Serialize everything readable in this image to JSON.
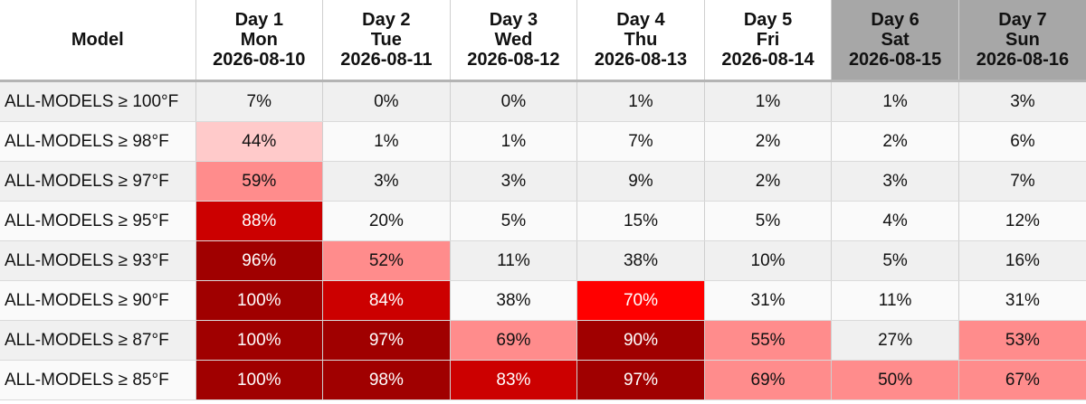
{
  "table": {
    "model_header": "Model",
    "days": [
      {
        "label": "Day 1",
        "weekday": "Mon",
        "date": "2026-08-10",
        "weekend": false
      },
      {
        "label": "Day 2",
        "weekday": "Tue",
        "date": "2026-08-11",
        "weekend": false
      },
      {
        "label": "Day 3",
        "weekday": "Wed",
        "date": "2026-08-12",
        "weekend": false
      },
      {
        "label": "Day 4",
        "weekday": "Thu",
        "date": "2026-08-13",
        "weekend": false
      },
      {
        "label": "Day 5",
        "weekday": "Fri",
        "date": "2026-08-14",
        "weekend": false
      },
      {
        "label": "Day 6",
        "weekday": "Sat",
        "date": "2026-08-15",
        "weekend": true
      },
      {
        "label": "Day 7",
        "weekday": "Sun",
        "date": "2026-08-16",
        "weekend": true
      }
    ],
    "rows": [
      {
        "model": "ALL-MODELS ≥ 100°F",
        "values": [
          "7%",
          "0%",
          "0%",
          "1%",
          "1%",
          "1%",
          "3%"
        ]
      },
      {
        "model": "ALL-MODELS ≥ 98°F",
        "values": [
          "44%",
          "1%",
          "1%",
          "7%",
          "2%",
          "2%",
          "6%"
        ]
      },
      {
        "model": "ALL-MODELS ≥ 97°F",
        "values": [
          "59%",
          "3%",
          "3%",
          "9%",
          "2%",
          "3%",
          "7%"
        ]
      },
      {
        "model": "ALL-MODELS ≥ 95°F",
        "values": [
          "88%",
          "20%",
          "5%",
          "15%",
          "5%",
          "4%",
          "12%"
        ]
      },
      {
        "model": "ALL-MODELS ≥ 93°F",
        "values": [
          "96%",
          "52%",
          "11%",
          "38%",
          "10%",
          "5%",
          "16%"
        ]
      },
      {
        "model": "ALL-MODELS ≥ 90°F",
        "values": [
          "100%",
          "84%",
          "38%",
          "70%",
          "31%",
          "11%",
          "31%"
        ]
      },
      {
        "model": "ALL-MODELS ≥ 87°F",
        "values": [
          "100%",
          "97%",
          "69%",
          "90%",
          "55%",
          "27%",
          "53%"
        ]
      },
      {
        "model": "ALL-MODELS ≥ 85°F",
        "values": [
          "100%",
          "98%",
          "83%",
          "97%",
          "69%",
          "50%",
          "67%"
        ]
      }
    ]
  },
  "colors": {
    "heat_light": "#ffcaca",
    "heat_mid": "#ff8c8c",
    "heat_bright": "#ff0000",
    "heat_strong": "#cc0000",
    "heat_dark": "#a00000",
    "weekend_header": "#a7a7a7"
  }
}
